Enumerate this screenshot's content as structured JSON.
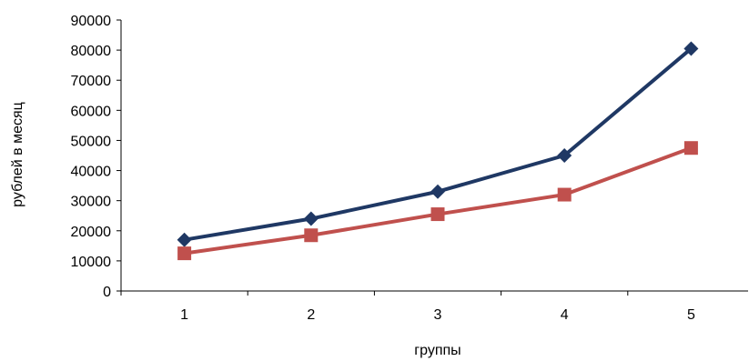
{
  "chart_data": {
    "type": "line",
    "title": "",
    "xlabel": "группы",
    "ylabel": "рублей в месяц",
    "categories": [
      "1",
      "2",
      "3",
      "4",
      "5"
    ],
    "ylim": [
      0,
      90000
    ],
    "yticks": [
      "0",
      "10000",
      "20000",
      "30000",
      "40000",
      "50000",
      "60000",
      "70000",
      "80000",
      "90000"
    ],
    "grid": false,
    "legend": "none",
    "series": [
      {
        "values": [
          17000,
          24000,
          33000,
          45000,
          80500
        ],
        "color": "#1F3864",
        "marker": "diamond"
      },
      {
        "values": [
          12500,
          18500,
          25500,
          32000,
          47500
        ],
        "color": "#C0504D",
        "marker": "square"
      }
    ]
  }
}
